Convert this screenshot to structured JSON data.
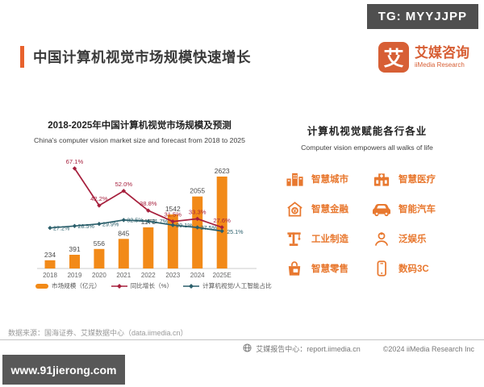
{
  "badges": {
    "tg": "TG: MYYJJPP",
    "watermark": "www.91jierong.com"
  },
  "header": {
    "title": "中国计算机视觉市场规模快速增长",
    "accent_color": "#e8622d",
    "logo": {
      "glyph": "艾",
      "name": "艾媒咨询",
      "subtitle": "iiMedia Research",
      "color": "#d75f35"
    }
  },
  "chart_section": {
    "title": "2018-2025年中国计算机视觉市场规模及预测",
    "subtitle": "China's computer vision market size and forecast from 2018 to 2025"
  },
  "chart_data": {
    "type": "bar",
    "categories": [
      "2018",
      "2019",
      "2020",
      "2021",
      "2022",
      "2023",
      "2024",
      "2025E"
    ],
    "series": [
      {
        "name": "市场规模（亿元）",
        "type": "bar",
        "color": "#f28a18",
        "values": [
          234,
          391,
          556,
          845,
          1173,
          1542,
          2055,
          2623
        ],
        "labels": [
          "234",
          "391",
          "556",
          "845",
          "1173",
          "1542",
          "2055",
          "2623"
        ]
      },
      {
        "name": "同比增长（%）",
        "type": "line",
        "color": "#a61f3c",
        "values": [
          null,
          67.1,
          42.2,
          52.0,
          38.8,
          31.5,
          33.3,
          27.6
        ],
        "labels": [
          null,
          "67.1%",
          "42.2%",
          "52.0%",
          "38.8%",
          "31.5%",
          "33.3%",
          "27.6%"
        ]
      },
      {
        "name": "计算机视觉/人工智能占比",
        "type": "line",
        "color": "#2b5f6b",
        "values": [
          27.2,
          28.5,
          29.9,
          32.5,
          31.7,
          29.1,
          27.5,
          25.1
        ],
        "labels": [
          "27.2%",
          "28.5%",
          "29.9%",
          "32.5%",
          "31.7%",
          "29.1%",
          "27.5%",
          "25.1%"
        ]
      }
    ],
    "bar_axis_range": [
      0,
      2800
    ],
    "pct_axis_range": [
      0,
      80
    ],
    "grid": "off",
    "legend_position": "bottom",
    "label_color": "#4a4a4a",
    "axis_color": "#cccccc",
    "tick_color": "#666666"
  },
  "industries": {
    "title": "计算机视觉赋能各行各业",
    "subtitle": "Computer vision empowers all walks of life",
    "icon_color": "#e8782f",
    "items": [
      {
        "icon": "smart-city-icon",
        "label": "智慧城市"
      },
      {
        "icon": "smart-medical-icon",
        "label": "智慧医疗"
      },
      {
        "icon": "smart-finance-icon",
        "label": "智慧金融"
      },
      {
        "icon": "smart-car-icon",
        "label": "智能汽车"
      },
      {
        "icon": "industrial-manufacturing-icon",
        "label": "工业制造"
      },
      {
        "icon": "pan-entertainment-icon",
        "label": "泛娱乐"
      },
      {
        "icon": "smart-retail-icon",
        "label": "智慧零售"
      },
      {
        "icon": "digital-3c-icon",
        "label": "数码3C"
      }
    ]
  },
  "footer": {
    "source": "数据来源：国海证券、艾媒数据中心（data.iimedia.cn）",
    "report_center": "艾媒报告中心：report.iimedia.cn",
    "copyright": "©2024 iiMedia Research  Inc"
  }
}
